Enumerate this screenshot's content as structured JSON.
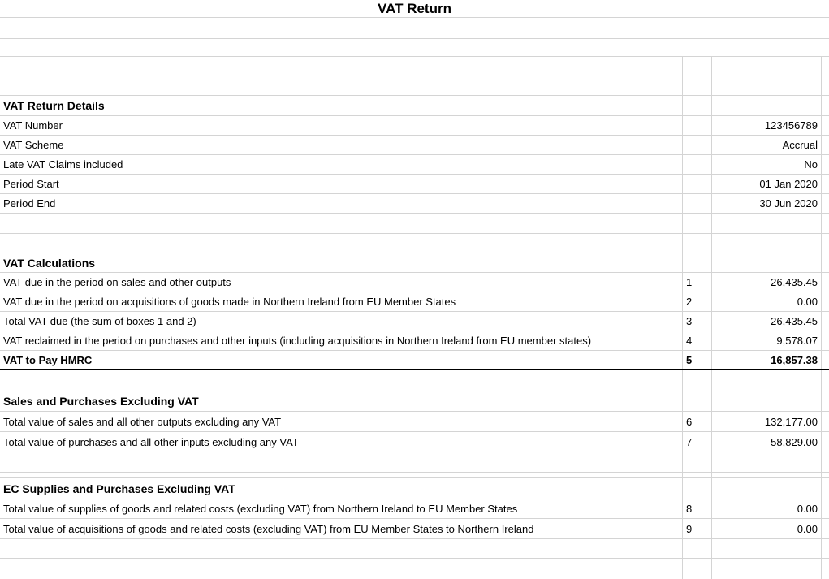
{
  "title": "VAT Return",
  "colors": {
    "grid": "#d4d4d4",
    "thick_border": "#000000",
    "text": "#000000",
    "background": "#ffffff"
  },
  "sections": [
    {
      "heading": "VAT Return Details",
      "rows": [
        {
          "label": "VAT Number",
          "box": "",
          "value": "123456789"
        },
        {
          "label": "VAT Scheme",
          "box": "",
          "value": "Accrual"
        },
        {
          "label": "Late VAT Claims included",
          "box": "",
          "value": "No"
        },
        {
          "label": "Period Start",
          "box": "",
          "value": "01 Jan 2020"
        },
        {
          "label": "Period End",
          "box": "",
          "value": "30 Jun 2020"
        }
      ]
    },
    {
      "heading": "VAT Calculations",
      "rows": [
        {
          "label": "VAT due in the period on sales and other outputs",
          "box": "1",
          "value": "26,435.45"
        },
        {
          "label": "VAT due in the period on acquisitions of goods made in Northern Ireland from EU Member States",
          "box": "2",
          "value": "0.00"
        },
        {
          "label": "Total VAT due (the sum of boxes 1 and 2)",
          "box": "3",
          "value": "26,435.45"
        },
        {
          "label": "VAT reclaimed in the period on purchases and other inputs (including acquisitions in Northern Ireland from EU member states)",
          "box": "4",
          "value": "9,578.07"
        },
        {
          "label": "VAT to Pay HMRC",
          "box": "5",
          "value": "16,857.38"
        }
      ]
    },
    {
      "heading": "Sales and Purchases Excluding VAT",
      "rows": [
        {
          "label": "Total value of sales and all other outputs excluding any VAT",
          "box": "6",
          "value": "132,177.00"
        },
        {
          "label": "Total value of purchases and all other inputs excluding any VAT",
          "box": "7",
          "value": "58,829.00"
        }
      ]
    },
    {
      "heading": "EC Supplies and Purchases Excluding VAT",
      "rows": [
        {
          "label": "Total value of supplies of goods and related costs (excluding VAT) from Northern Ireland to EU Member States",
          "box": "8",
          "value": "0.00"
        },
        {
          "label": "Total value of acquisitions of goods and related costs (excluding VAT) from EU Member States to Northern Ireland",
          "box": "9",
          "value": "0.00"
        }
      ]
    }
  ]
}
